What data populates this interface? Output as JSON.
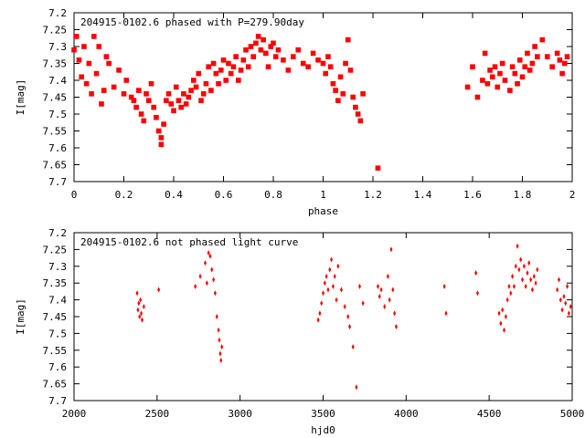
{
  "chart_data": [
    {
      "type": "scatter",
      "title": "204915-0102.6 phased with P=279.90day",
      "xlabel": "phase",
      "ylabel": "I[mag]",
      "xlim": [
        0,
        2
      ],
      "ylim": [
        7.7,
        7.2
      ],
      "y_inverted": true,
      "xticks": [
        "0",
        "0.2",
        "0.4",
        "0.6",
        "0.8",
        "1",
        "1.2",
        "1.4",
        "1.6",
        "1.8",
        "2"
      ],
      "yticks": [
        "7.2",
        "7.25",
        "7.3",
        "7.35",
        "7.4",
        "7.45",
        "7.5",
        "7.55",
        "7.6",
        "7.65",
        "7.7"
      ],
      "grid": false,
      "marker": "filled-square",
      "series": [
        {
          "color": "#ff0000",
          "x": [
            0.0,
            0.01,
            0.02,
            0.03,
            0.04,
            0.05,
            0.06,
            0.07,
            0.08,
            0.09,
            0.1,
            0.11,
            0.12,
            0.13,
            0.14,
            0.16,
            0.18,
            0.2,
            0.21,
            0.23,
            0.24,
            0.25,
            0.26,
            0.27,
            0.28,
            0.29,
            0.3,
            0.31,
            0.32,
            0.33,
            0.34,
            0.35,
            0.35,
            0.36,
            0.37,
            0.38,
            0.39,
            0.4,
            0.41,
            0.42,
            0.43,
            0.44,
            0.45,
            0.46,
            0.47,
            0.48,
            0.49,
            0.5,
            0.51,
            0.52,
            0.53,
            0.54,
            0.55,
            0.56,
            0.57,
            0.58,
            0.59,
            0.6,
            0.61,
            0.62,
            0.63,
            0.64,
            0.65,
            0.66,
            0.67,
            0.68,
            0.69,
            0.7,
            0.71,
            0.72,
            0.73,
            0.74,
            0.75,
            0.76,
            0.77,
            0.78,
            0.79,
            0.8,
            0.81,
            0.82,
            0.84,
            0.86,
            0.88,
            0.9,
            0.92,
            0.94,
            0.96,
            0.98,
            1.0,
            1.01,
            1.02,
            1.03,
            1.04,
            1.05,
            1.06,
            1.07,
            1.08,
            1.09,
            1.1,
            1.11,
            1.12,
            1.13,
            1.14,
            1.15,
            1.16,
            1.22,
            1.58,
            1.6,
            1.62,
            1.64,
            1.65,
            1.66,
            1.67,
            1.68,
            1.69,
            1.7,
            1.71,
            1.72,
            1.73,
            1.75,
            1.76,
            1.77,
            1.78,
            1.79,
            1.8,
            1.81,
            1.82,
            1.83,
            1.84,
            1.85,
            1.86,
            1.88,
            1.9,
            1.92,
            1.94,
            1.95,
            1.96,
            1.97,
            1.98
          ],
          "y": [
            7.31,
            7.27,
            7.34,
            7.39,
            7.3,
            7.41,
            7.35,
            7.44,
            7.27,
            7.38,
            7.3,
            7.47,
            7.43,
            7.33,
            7.35,
            7.42,
            7.37,
            7.44,
            7.4,
            7.45,
            7.46,
            7.48,
            7.43,
            7.5,
            7.52,
            7.44,
            7.46,
            7.41,
            7.48,
            7.51,
            7.55,
            7.57,
            7.59,
            7.53,
            7.46,
            7.44,
            7.47,
            7.49,
            7.42,
            7.46,
            7.48,
            7.44,
            7.47,
            7.45,
            7.43,
            7.4,
            7.42,
            7.38,
            7.46,
            7.44,
            7.41,
            7.36,
            7.43,
            7.35,
            7.38,
            7.41,
            7.37,
            7.34,
            7.4,
            7.35,
            7.38,
            7.36,
            7.33,
            7.4,
            7.37,
            7.34,
            7.31,
            7.36,
            7.3,
            7.33,
            7.29,
            7.27,
            7.31,
            7.28,
            7.32,
            7.36,
            7.3,
            7.29,
            7.33,
            7.31,
            7.34,
            7.37,
            7.33,
            7.31,
            7.35,
            7.36,
            7.32,
            7.34,
            7.35,
            7.38,
            7.33,
            7.36,
            7.41,
            7.43,
            7.46,
            7.39,
            7.44,
            7.35,
            7.28,
            7.37,
            7.45,
            7.48,
            7.5,
            7.52,
            7.44,
            7.66,
            7.42,
            7.36,
            7.45,
            7.4,
            7.32,
            7.41,
            7.37,
            7.39,
            7.36,
            7.42,
            7.38,
            7.35,
            7.4,
            7.43,
            7.36,
            7.38,
            7.41,
            7.34,
            7.39,
            7.36,
            7.32,
            7.37,
            7.35,
            7.3,
            7.33,
            7.28,
            7.33,
            7.36,
            7.32,
            7.34,
            7.38,
            7.35,
            7.33
          ]
        }
      ]
    },
    {
      "type": "scatter",
      "title": "204915-0102.6 not phased light curve",
      "xlabel": "hjd0",
      "ylabel": "I[mag]",
      "xlim": [
        2000,
        5000
      ],
      "ylim": [
        7.7,
        7.2
      ],
      "y_inverted": true,
      "xticks": [
        "2000",
        "2500",
        "3000",
        "3500",
        "4000",
        "4500",
        "5000"
      ],
      "yticks": [
        "7.2",
        "7.25",
        "7.3",
        "7.35",
        "7.4",
        "7.45",
        "7.5",
        "7.55",
        "7.6",
        "7.65",
        "7.7"
      ],
      "grid": false,
      "marker": "diamond",
      "series": [
        {
          "color": "#ff0000",
          "x": [
            2380,
            2385,
            2390,
            2395,
            2400,
            2405,
            2410,
            2420,
            2510,
            2730,
            2760,
            2790,
            2800,
            2810,
            2820,
            2830,
            2840,
            2850,
            2860,
            2870,
            2875,
            2880,
            2885,
            2890,
            3470,
            3480,
            3490,
            3500,
            3510,
            3520,
            3530,
            3540,
            3550,
            3560,
            3570,
            3580,
            3590,
            3610,
            3630,
            3650,
            3660,
            3680,
            3700,
            3720,
            3740,
            3830,
            3840,
            3850,
            3870,
            3890,
            3900,
            3910,
            3920,
            3930,
            3940,
            4230,
            4240,
            4420,
            4430,
            4560,
            4570,
            4580,
            4590,
            4600,
            4610,
            4620,
            4630,
            4640,
            4650,
            4660,
            4670,
            4680,
            4690,
            4700,
            4710,
            4720,
            4730,
            4740,
            4750,
            4760,
            4770,
            4780,
            4790,
            4910,
            4920,
            4930,
            4940,
            4950,
            4960,
            4970,
            4980,
            4990
          ],
          "y": [
            7.38,
            7.43,
            7.41,
            7.45,
            7.4,
            7.44,
            7.46,
            7.42,
            7.37,
            7.36,
            7.33,
            7.29,
            7.35,
            7.26,
            7.27,
            7.31,
            7.34,
            7.38,
            7.45,
            7.49,
            7.52,
            7.56,
            7.58,
            7.54,
            7.46,
            7.44,
            7.41,
            7.38,
            7.35,
            7.33,
            7.37,
            7.31,
            7.28,
            7.36,
            7.33,
            7.4,
            7.3,
            7.37,
            7.42,
            7.45,
            7.48,
            7.54,
            7.66,
            7.36,
            7.41,
            7.36,
            7.39,
            7.37,
            7.42,
            7.33,
            7.4,
            7.25,
            7.37,
            7.44,
            7.48,
            7.36,
            7.44,
            7.32,
            7.38,
            7.44,
            7.47,
            7.43,
            7.49,
            7.45,
            7.4,
            7.36,
            7.38,
            7.33,
            7.36,
            7.3,
            7.24,
            7.31,
            7.28,
            7.34,
            7.3,
            7.36,
            7.32,
            7.29,
            7.34,
            7.37,
            7.33,
            7.35,
            7.31,
            7.37,
            7.34,
            7.4,
            7.43,
            7.39,
            7.41,
            7.36,
            7.44,
            7.42
          ]
        }
      ]
    }
  ]
}
